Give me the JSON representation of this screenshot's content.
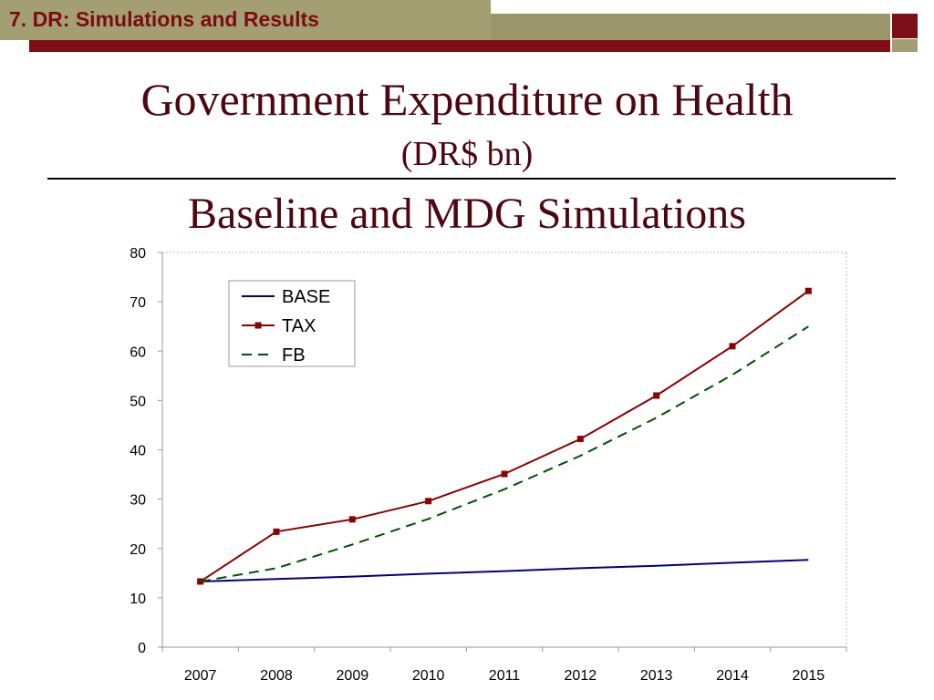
{
  "slide": {
    "section_label": "7. DR: Simulations and Results",
    "title": "Government Expenditure on Health",
    "unit": "(DR$ bn)",
    "subtitle": "Baseline and MDG Simulations"
  },
  "colors": {
    "header_red": "#7f0f17",
    "header_olive": "#a39f72",
    "title_text": "#4d0710",
    "series_base": "#00007f",
    "series_tax": "#8b0000",
    "series_fb": "#005000"
  },
  "chart_data": {
    "type": "line",
    "title": "",
    "xlabel": "",
    "ylabel": "",
    "x": [
      "2007",
      "2008",
      "2009",
      "2010",
      "2011",
      "2012",
      "2013",
      "2014",
      "2015"
    ],
    "ylim": [
      0,
      80
    ],
    "yticks": [
      0,
      10,
      20,
      30,
      40,
      50,
      60,
      70,
      80
    ],
    "grid": false,
    "legend_position": "top-left",
    "series": [
      {
        "name": "BASE",
        "style": "solid",
        "markers": false,
        "color": "#00007f",
        "values": [
          13.3,
          13.8,
          14.3,
          14.9,
          15.4,
          16.0,
          16.5,
          17.1,
          17.7
        ]
      },
      {
        "name": "TAX",
        "style": "solid",
        "markers": true,
        "color": "#8b0000",
        "values": [
          13.3,
          23.4,
          25.9,
          29.6,
          35.1,
          42.2,
          51.0,
          61.0,
          72.2
        ]
      },
      {
        "name": "FB",
        "style": "dashed",
        "markers": false,
        "color": "#005000",
        "values": [
          13.3,
          16.0,
          20.8,
          26.0,
          32.0,
          38.8,
          46.5,
          55.2,
          65.0
        ]
      }
    ]
  }
}
